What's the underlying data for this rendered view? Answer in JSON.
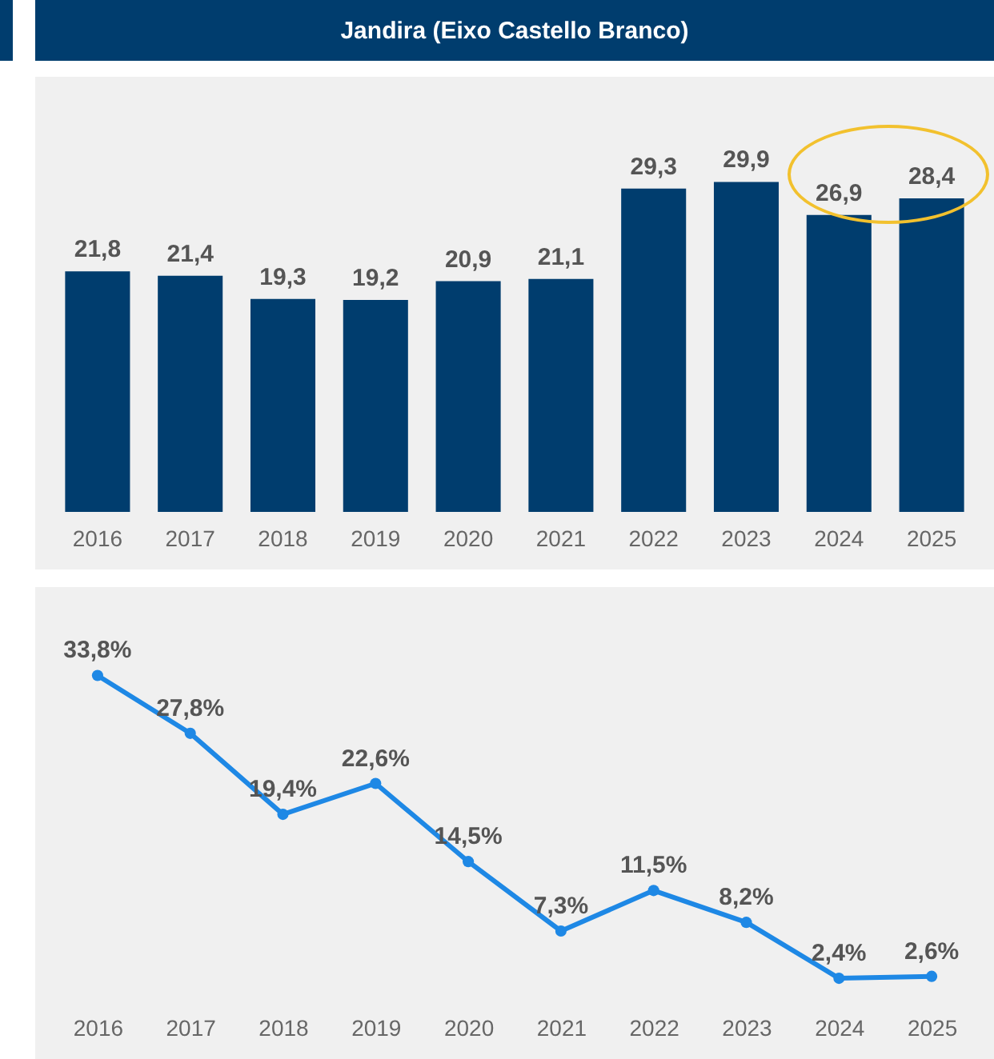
{
  "chart_data": [
    {
      "type": "bar",
      "title": "Jandira (Eixo Castello Branco)",
      "categories": [
        "2016",
        "2017",
        "2018",
        "2019",
        "2020",
        "2021",
        "2022",
        "2023",
        "2024",
        "2025"
      ],
      "values": [
        21.8,
        21.4,
        19.3,
        19.2,
        20.9,
        21.1,
        29.3,
        29.9,
        26.9,
        28.4
      ],
      "value_labels": [
        "21,8",
        "21,4",
        "19,3",
        "19,2",
        "20,9",
        "21,1",
        "29,3",
        "29,9",
        "26,9",
        "28,4"
      ],
      "color": "#003d6e",
      "tick_labels": "x"
    },
    {
      "type": "line",
      "categories": [
        "2016",
        "2017",
        "2018",
        "2019",
        "2020",
        "2021",
        "2022",
        "2023",
        "2024",
        "2025"
      ],
      "values": [
        33.8,
        27.8,
        19.4,
        22.6,
        14.5,
        7.3,
        11.5,
        8.2,
        2.4,
        2.6
      ],
      "value_labels": [
        "33,8%",
        "27,8%",
        "19,4%",
        "22,6%",
        "14,5%",
        "7,3%",
        "11,5%",
        "8,2%",
        "2,4%",
        "2,6%"
      ],
      "color": "#1e88e5",
      "marker": "circle",
      "tick_labels": "x"
    }
  ]
}
